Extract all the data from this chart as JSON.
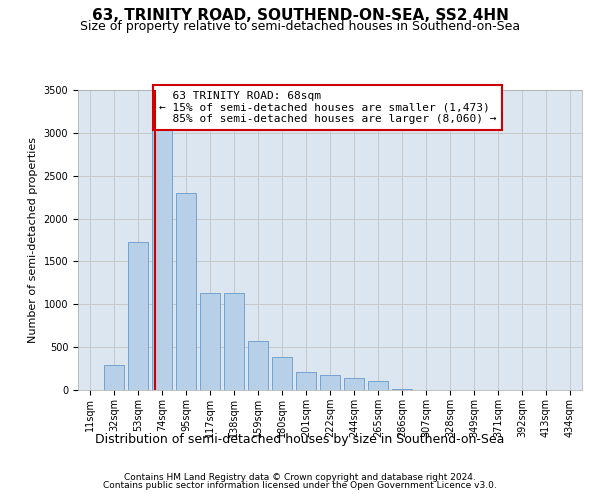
{
  "title": "63, TRINITY ROAD, SOUTHEND-ON-SEA, SS2 4HN",
  "subtitle": "Size of property relative to semi-detached houses in Southend-on-Sea",
  "xlabel": "Distribution of semi-detached houses by size in Southend-on-Sea",
  "ylabel": "Number of semi-detached properties",
  "footnote1": "Contains HM Land Registry data © Crown copyright and database right 2024.",
  "footnote2": "Contains public sector information licensed under the Open Government Licence v3.0.",
  "bin_labels": [
    "11sqm",
    "32sqm",
    "53sqm",
    "74sqm",
    "95sqm",
    "117sqm",
    "138sqm",
    "159sqm",
    "180sqm",
    "201sqm",
    "222sqm",
    "244sqm",
    "265sqm",
    "286sqm",
    "307sqm",
    "328sqm",
    "349sqm",
    "371sqm",
    "392sqm",
    "413sqm",
    "434sqm"
  ],
  "bar_values": [
    5,
    290,
    1730,
    3080,
    2300,
    1130,
    1130,
    570,
    380,
    215,
    180,
    140,
    100,
    15,
    0,
    0,
    0,
    0,
    0,
    0,
    0
  ],
  "bar_color": "#b8cfe8",
  "bar_edge_color": "#6699cc",
  "property_label": "63 TRINITY ROAD: 68sqm",
  "pct_smaller": 15,
  "n_smaller": 1473,
  "pct_larger": 85,
  "n_larger": 8060,
  "vline_color": "#cc0000",
  "vline_x": 2.714,
  "ylim": [
    0,
    3500
  ],
  "yticks": [
    0,
    500,
    1000,
    1500,
    2000,
    2500,
    3000,
    3500
  ],
  "grid_color": "#c8c8c8",
  "bg_color": "#dce6f0",
  "title_fontsize": 11,
  "subtitle_fontsize": 9,
  "ylabel_fontsize": 8,
  "xlabel_fontsize": 9,
  "tick_fontsize": 7,
  "annotation_fontsize": 8
}
